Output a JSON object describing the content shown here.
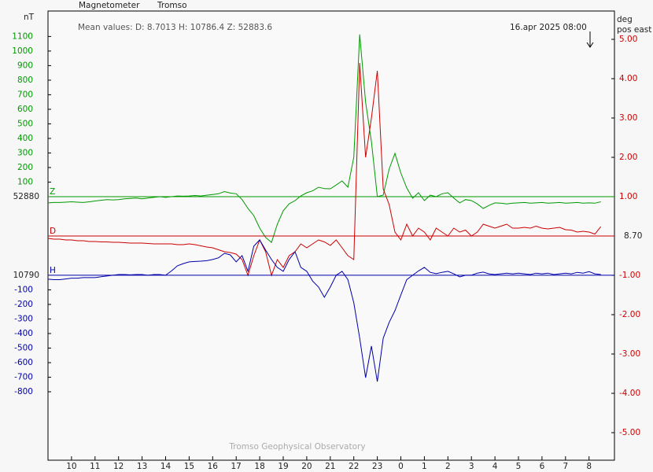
{
  "chart_data": {
    "type": "line",
    "title": "Magnetometer",
    "subtitle": "Tromso",
    "annotation": "Mean values:  D: 8.7013   H: 10786.4   Z: 52883.6",
    "timestamp": "16.apr 2025 08:00",
    "footer": "Tromso Geophysical Observatory",
    "y_label": "nT",
    "y2_label": "deg",
    "y2_sublabel": "pos east",
    "xlim": [
      9,
      33.08
    ],
    "xticks": [
      10,
      11,
      12,
      13,
      14,
      15,
      16,
      17,
      18,
      19,
      20,
      21,
      22,
      23,
      {
        "value": 24,
        "label": "0"
      },
      {
        "value": 25,
        "label": "1"
      },
      {
        "value": 26,
        "label": "2"
      },
      {
        "value": 27,
        "label": "3"
      },
      {
        "value": 28,
        "label": "4"
      },
      {
        "value": 29,
        "label": "5"
      },
      {
        "value": 30,
        "label": "6"
      },
      {
        "value": 31,
        "label": "7"
      },
      {
        "value": 32,
        "label": "8"
      }
    ],
    "ylim": [
      -1810,
      1275
    ],
    "yticks": [
      100,
      200,
      300,
      400,
      500,
      600,
      700,
      800,
      900,
      1000,
      1100
    ],
    "h_ylim": [
      -1270,
      1815
    ],
    "h_yticks": [
      -100,
      -200,
      -300,
      -400,
      -500,
      -600,
      -700,
      -800
    ],
    "y2lim": [
      -5.7,
      5.72
    ],
    "y2ticks": [
      {
        "value": 5,
        "label": "5.00"
      },
      {
        "value": 4,
        "label": "4.00"
      },
      {
        "value": 3,
        "label": "3.00"
      },
      {
        "value": 2,
        "label": "2.00"
      },
      {
        "value": 1,
        "label": "1.00"
      },
      {
        "value": -1,
        "label": "-1.00"
      },
      {
        "value": -2,
        "label": "-2.00"
      },
      {
        "value": -3,
        "label": "-3.00"
      },
      {
        "value": -4,
        "label": "-4.00"
      },
      {
        "value": -5,
        "label": "-5.00"
      }
    ],
    "x": [
      9,
      9.25,
      9.5,
      9.75,
      10,
      10.25,
      10.5,
      10.75,
      11,
      11.25,
      11.5,
      11.75,
      12,
      12.25,
      12.5,
      12.75,
      13,
      13.25,
      13.5,
      13.75,
      14,
      14.25,
      14.5,
      14.75,
      15,
      15.25,
      15.5,
      15.75,
      16,
      16.25,
      16.5,
      16.75,
      17,
      17.25,
      17.5,
      17.75,
      18,
      18.25,
      18.5,
      18.75,
      19,
      19.25,
      19.5,
      19.75,
      20,
      20.25,
      20.5,
      20.75,
      21,
      21.25,
      21.5,
      21.75,
      22,
      22.25,
      22.5,
      22.75,
      23,
      23.25,
      23.5,
      23.75,
      24,
      24.25,
      24.5,
      24.75,
      25,
      25.25,
      25.5,
      25.75,
      26,
      26.25,
      26.5,
      26.75,
      27,
      27.25,
      27.5,
      27.75,
      28,
      28.25,
      28.5,
      28.75,
      29,
      29.25,
      29.5,
      29.75,
      30,
      30.25,
      30.5,
      30.75,
      31,
      31.25,
      31.5,
      31.75,
      32,
      32.25,
      32.5
    ],
    "series": [
      {
        "name": "Z",
        "color": "#009900",
        "axis": "y",
        "baseline": 52880,
        "values": [
          -43,
          -40,
          -40,
          -38,
          -35,
          -38,
          -40,
          -35,
          -30,
          -25,
          -20,
          -22,
          -20,
          -15,
          -12,
          -10,
          -15,
          -10,
          -5,
          0,
          -5,
          0,
          5,
          3,
          5,
          8,
          5,
          10,
          15,
          20,
          35,
          25,
          20,
          -20,
          -81,
          -130,
          -216,
          -280,
          -314,
          -189,
          -97,
          -50,
          -27,
          5,
          27,
          40,
          65,
          55,
          54,
          80,
          108,
          65,
          270,
          1114,
          649,
          378,
          0,
          11,
          189,
          297,
          162,
          60,
          -11,
          27,
          -27,
          10,
          0,
          20,
          27,
          -10,
          -43,
          -20,
          -27,
          -50,
          -81,
          -60,
          -43,
          -45,
          -50,
          -45,
          -43,
          -40,
          -45,
          -43,
          -40,
          -45,
          -43,
          -40,
          -45,
          -43,
          -40,
          -45,
          -43,
          -45,
          -35
        ]
      },
      {
        "name": "D",
        "color": "#cc0000",
        "axis": "y2",
        "baseline": {
          "value": 8.7,
          "label": "8.70"
        },
        "values": [
          -0.06,
          -0.08,
          -0.08,
          -0.1,
          -0.1,
          -0.12,
          -0.12,
          -0.14,
          -0.14,
          -0.15,
          -0.15,
          -0.16,
          -0.16,
          -0.17,
          -0.18,
          -0.18,
          -0.18,
          -0.19,
          -0.2,
          -0.2,
          -0.2,
          -0.2,
          -0.22,
          -0.22,
          -0.2,
          -0.22,
          -0.25,
          -0.28,
          -0.3,
          -0.35,
          -0.4,
          -0.42,
          -0.46,
          -0.6,
          -1.0,
          -0.5,
          -0.1,
          -0.4,
          -1.0,
          -0.6,
          -0.8,
          -0.5,
          -0.4,
          -0.2,
          -0.3,
          -0.2,
          -0.1,
          -0.15,
          -0.24,
          -0.1,
          -0.3,
          -0.5,
          -0.6,
          4.4,
          2.0,
          3.0,
          4.2,
          1.2,
          0.8,
          0.1,
          -0.1,
          0.3,
          0.0,
          0.2,
          0.1,
          -0.1,
          0.2,
          0.1,
          0.0,
          0.2,
          0.1,
          0.15,
          0.0,
          0.1,
          0.3,
          0.25,
          0.2,
          0.25,
          0.3,
          0.2,
          0.2,
          0.22,
          0.2,
          0.25,
          0.2,
          0.18,
          0.2,
          0.22,
          0.16,
          0.15,
          0.1,
          0.12,
          0.1,
          0.05,
          0.24
        ]
      },
      {
        "name": "H",
        "color": "#0000aa",
        "axis": "h",
        "baseline": 10790,
        "values": [
          -27,
          -30,
          -30,
          -25,
          -20,
          -20,
          -16,
          -16,
          -16,
          -10,
          -5,
          0,
          5,
          5,
          3,
          5,
          5,
          0,
          5,
          5,
          0,
          30,
          65,
          80,
          92,
          95,
          97,
          100,
          108,
          120,
          151,
          140,
          92,
          135,
          27,
          200,
          243,
          173,
          108,
          54,
          27,
          108,
          162,
          54,
          27,
          -40,
          -81,
          -151,
          -81,
          0,
          27,
          -30,
          -189,
          -432,
          -703,
          -486,
          -730,
          -432,
          -324,
          -243,
          -135,
          -30,
          0,
          30,
          54,
          20,
          11,
          20,
          27,
          10,
          -11,
          0,
          0,
          15,
          22,
          10,
          5,
          10,
          15,
          10,
          15,
          10,
          5,
          15,
          10,
          15,
          5,
          10,
          15,
          10,
          20,
          15,
          25,
          10,
          5
        ]
      }
    ]
  }
}
